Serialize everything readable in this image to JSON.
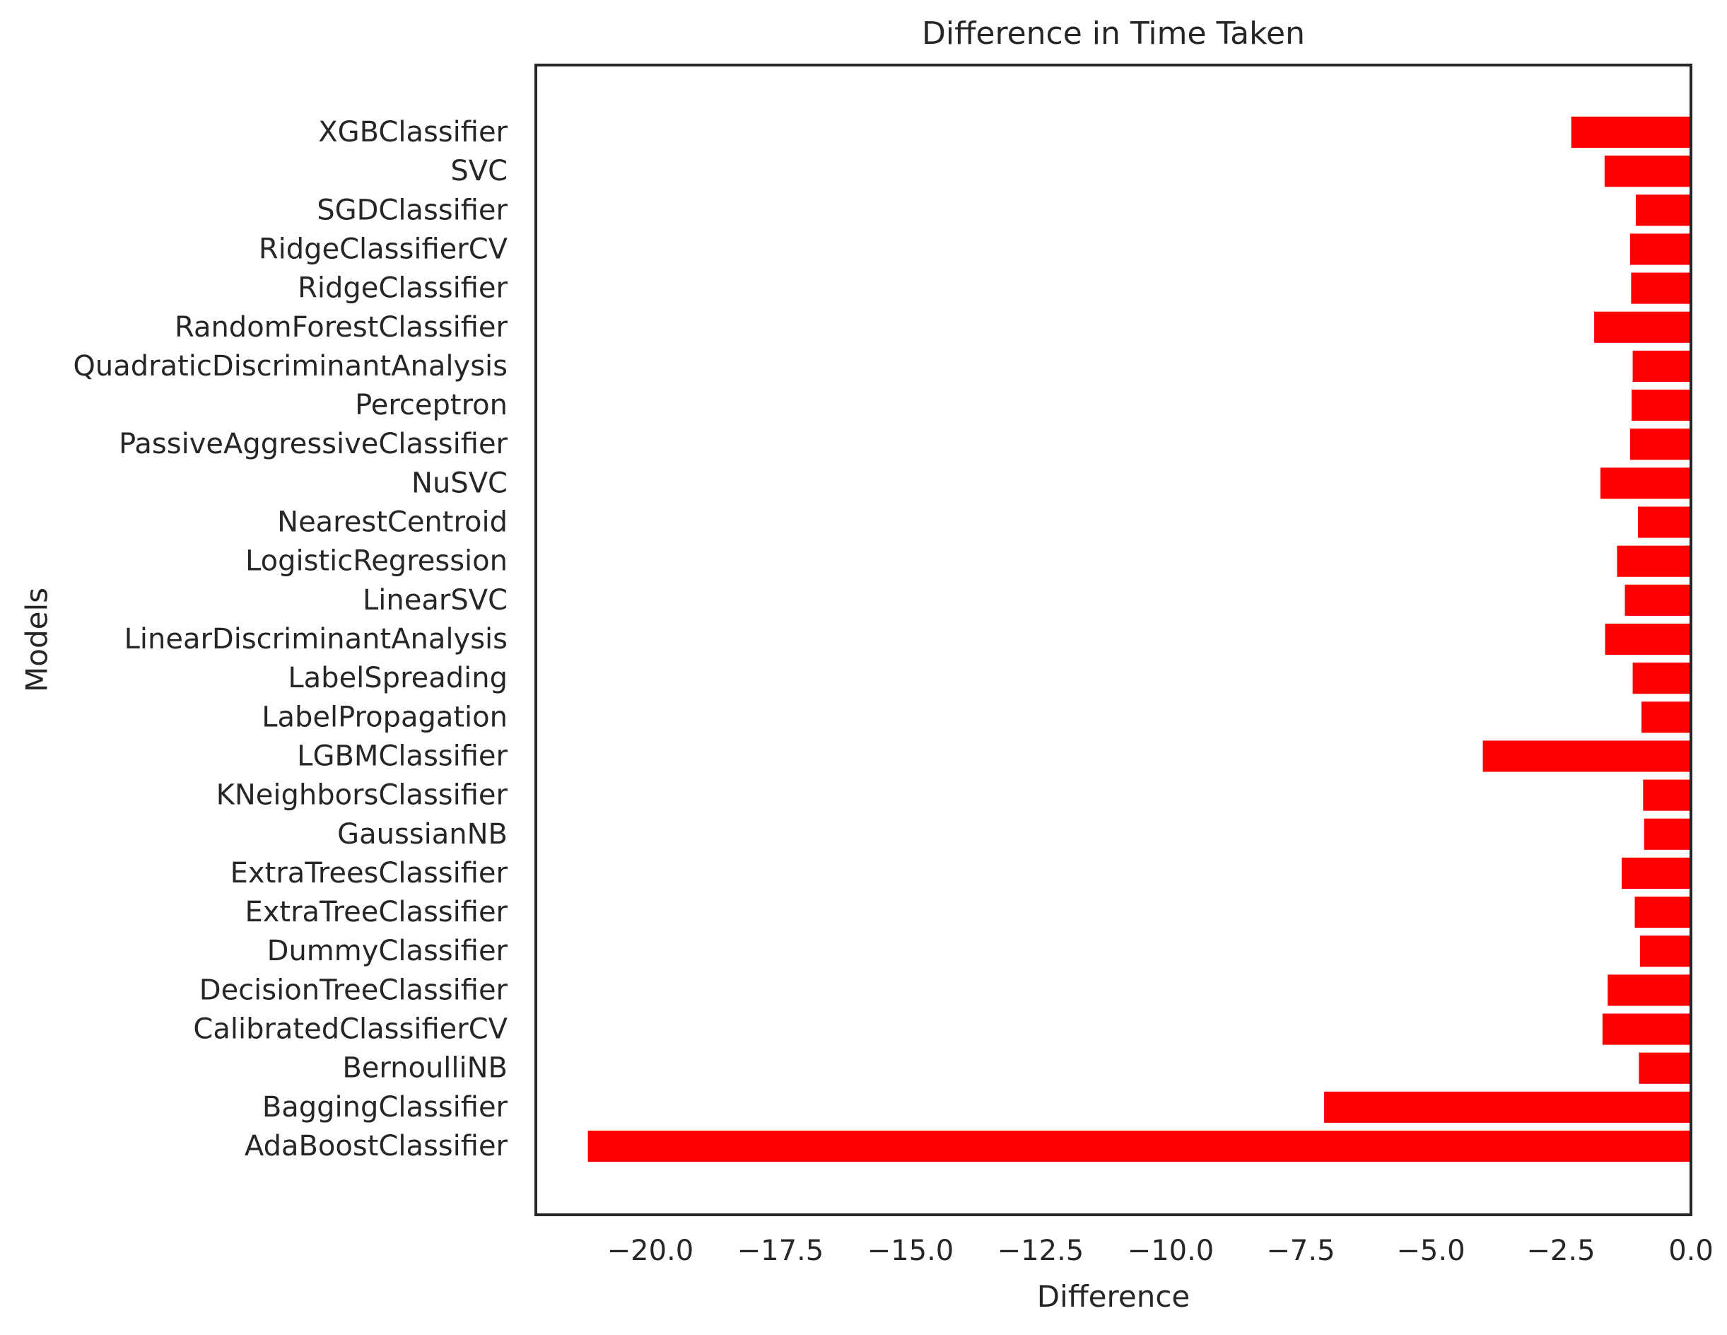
{
  "chart_data": {
    "type": "bar",
    "orientation": "horizontal",
    "title": "Difference in Time Taken",
    "xlabel": "Difference",
    "ylabel": "Models",
    "xlim": [
      -22.2,
      0.0
    ],
    "xticks": [
      -20.0,
      -17.5,
      -15.0,
      -12.5,
      -10.0,
      -7.5,
      -5.0,
      -2.5,
      0.0
    ],
    "xtick_labels": [
      "−20.0",
      "−17.5",
      "−15.0",
      "−12.5",
      "−10.0",
      "−7.5",
      "−5.0",
      "−2.5",
      "0.0"
    ],
    "grid": false,
    "bar_color": "#ff0000",
    "categories": [
      "AdaBoostClassifier",
      "BaggingClassifier",
      "BernoulliNB",
      "CalibratedClassifierCV",
      "DecisionTreeClassifier",
      "DummyClassifier",
      "ExtraTreeClassifier",
      "ExtraTreesClassifier",
      "GaussianNB",
      "KNeighborsClassifier",
      "LGBMClassifier",
      "LabelPropagation",
      "LabelSpreading",
      "LinearDiscriminantAnalysis",
      "LinearSVC",
      "LogisticRegression",
      "NearestCentroid",
      "NuSVC",
      "PassiveAggressiveClassifier",
      "Perceptron",
      "QuadraticDiscriminantAnalysis",
      "RandomForestClassifier",
      "RidgeClassifier",
      "RidgeClassifierCV",
      "SGDClassifier",
      "SVC",
      "XGBClassifier"
    ],
    "values": [
      -21.2,
      -7.05,
      -1.0,
      -1.7,
      -1.6,
      -0.98,
      -1.08,
      -1.33,
      -0.9,
      -0.92,
      -4.0,
      -0.95,
      -1.12,
      -1.65,
      -1.27,
      -1.42,
      -1.02,
      -1.74,
      -1.17,
      -1.14,
      -1.12,
      -1.86,
      -1.15,
      -1.17,
      -1.06,
      -1.66,
      -2.3
    ]
  }
}
